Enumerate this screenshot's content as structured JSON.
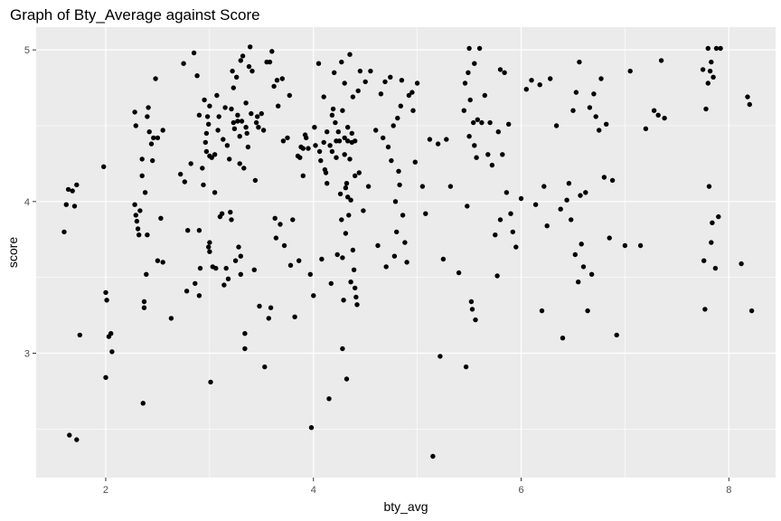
{
  "chart_data": {
    "type": "scatter",
    "title": "Graph of Bty_Average against Score",
    "xlabel": "bty_avg",
    "ylabel": "score",
    "xlim": [
      1.33,
      8.45
    ],
    "ylim": [
      2.18,
      5.15
    ],
    "x_ticks": [
      2,
      4,
      6,
      8
    ],
    "x_tick_labels": [
      "2",
      "4",
      "6",
      "8"
    ],
    "y_ticks": [
      3,
      4,
      5
    ],
    "y_tick_labels": [
      "3",
      "4",
      "5"
    ],
    "grid": true,
    "colors": {
      "panel": "#ebebeb",
      "grid_major": "#ffffff",
      "point": "#000000",
      "tick": "#333333"
    },
    "points": [
      [
        1.6,
        3.8
      ],
      [
        1.62,
        3.98
      ],
      [
        1.64,
        4.08
      ],
      [
        1.68,
        4.07
      ],
      [
        1.7,
        3.97
      ],
      [
        1.72,
        4.11
      ],
      [
        1.65,
        2.46
      ],
      [
        1.72,
        2.43
      ],
      [
        1.75,
        3.12
      ],
      [
        1.98,
        4.23
      ],
      [
        2.0,
        2.84
      ],
      [
        2.0,
        3.4
      ],
      [
        2.01,
        3.35
      ],
      [
        2.03,
        3.11
      ],
      [
        2.05,
        3.13
      ],
      [
        2.06,
        3.01
      ],
      [
        2.28,
        4.59
      ],
      [
        2.29,
        4.5
      ],
      [
        2.28,
        3.98
      ],
      [
        2.29,
        3.91
      ],
      [
        2.3,
        3.87
      ],
      [
        2.31,
        3.82
      ],
      [
        2.32,
        3.78
      ],
      [
        2.33,
        3.94
      ],
      [
        2.35,
        4.28
      ],
      [
        2.35,
        4.17
      ],
      [
        2.37,
        3.34
      ],
      [
        2.37,
        3.3
      ],
      [
        2.36,
        2.67
      ],
      [
        2.38,
        4.06
      ],
      [
        2.39,
        3.52
      ],
      [
        2.4,
        3.78
      ],
      [
        2.4,
        4.56
      ],
      [
        2.41,
        4.62
      ],
      [
        2.42,
        4.46
      ],
      [
        2.44,
        4.38
      ],
      [
        2.45,
        4.27
      ],
      [
        2.46,
        4.42
      ],
      [
        2.48,
        4.81
      ],
      [
        2.5,
        4.42
      ],
      [
        2.5,
        3.61
      ],
      [
        2.53,
        3.89
      ],
      [
        2.55,
        3.6
      ],
      [
        2.55,
        4.47
      ],
      [
        2.63,
        3.23
      ],
      [
        2.72,
        4.18
      ],
      [
        2.75,
        4.91
      ],
      [
        2.76,
        4.13
      ],
      [
        2.78,
        3.41
      ],
      [
        2.79,
        3.81
      ],
      [
        2.82,
        4.25
      ],
      [
        2.85,
        4.98
      ],
      [
        2.86,
        3.46
      ],
      [
        2.88,
        4.83
      ],
      [
        2.9,
        4.57
      ],
      [
        2.9,
        3.38
      ],
      [
        2.9,
        3.81
      ],
      [
        2.91,
        3.56
      ],
      [
        2.93,
        4.22
      ],
      [
        2.94,
        4.11
      ],
      [
        2.95,
        4.67
      ],
      [
        2.96,
        4.39
      ],
      [
        2.97,
        4.33
      ],
      [
        2.97,
        4.45
      ],
      [
        2.98,
        4.56
      ],
      [
        2.99,
        3.7
      ],
      [
        3.0,
        3.73
      ],
      [
        3.0,
        3.67
      ],
      [
        3.0,
        4.3
      ],
      [
        3.0,
        4.63
      ],
      [
        3.01,
        2.81
      ],
      [
        3.02,
        4.29
      ],
      [
        3.03,
        3.57
      ],
      [
        3.05,
        4.06
      ],
      [
        3.06,
        3.56
      ],
      [
        3.07,
        4.7
      ],
      [
        3.08,
        4.47
      ],
      [
        3.09,
        4.56
      ],
      [
        3.1,
        3.9
      ],
      [
        3.12,
        3.92
      ],
      [
        3.14,
        3.45
      ],
      [
        3.15,
        4.62
      ],
      [
        3.16,
        3.56
      ],
      [
        3.17,
        4.37
      ],
      [
        3.18,
        3.49
      ],
      [
        3.19,
        4.28
      ],
      [
        3.2,
        3.93
      ],
      [
        3.21,
        3.88
      ],
      [
        3.22,
        4.86
      ],
      [
        3.23,
        4.75
      ],
      [
        3.23,
        4.52
      ],
      [
        3.24,
        4.48
      ],
      [
        3.25,
        3.61
      ],
      [
        3.26,
        4.82
      ],
      [
        3.27,
        4.57
      ],
      [
        3.28,
        3.7
      ],
      [
        3.29,
        4.25
      ],
      [
        3.3,
        3.64
      ],
      [
        3.3,
        4.93
      ],
      [
        3.3,
        3.52
      ],
      [
        3.31,
        4.53
      ],
      [
        3.32,
        4.96
      ],
      [
        3.33,
        4.22
      ],
      [
        3.34,
        3.13
      ],
      [
        3.34,
        3.03
      ],
      [
        3.35,
        4.65
      ],
      [
        3.35,
        4.49
      ],
      [
        3.36,
        4.45
      ],
      [
        3.37,
        4.36
      ],
      [
        3.38,
        4.89
      ],
      [
        3.39,
        5.02
      ],
      [
        3.4,
        4.58
      ],
      [
        3.41,
        4.86
      ],
      [
        3.43,
        3.55
      ],
      [
        3.44,
        4.14
      ],
      [
        3.45,
        4.52
      ],
      [
        3.46,
        4.56
      ],
      [
        3.47,
        4.49
      ],
      [
        3.48,
        3.31
      ],
      [
        3.5,
        4.58
      ],
      [
        3.52,
        4.47
      ],
      [
        3.53,
        2.91
      ],
      [
        3.55,
        4.92
      ],
      [
        3.57,
        3.23
      ],
      [
        3.58,
        4.92
      ],
      [
        3.59,
        3.3
      ],
      [
        3.6,
        4.99
      ],
      [
        3.62,
        4.76
      ],
      [
        3.63,
        3.89
      ],
      [
        3.64,
        3.76
      ],
      [
        3.65,
        4.8
      ],
      [
        3.66,
        4.63
      ],
      [
        3.68,
        3.85
      ],
      [
        3.7,
        4.81
      ],
      [
        3.71,
        4.4
      ],
      [
        3.72,
        3.71
      ],
      [
        3.75,
        4.42
      ],
      [
        3.77,
        4.7
      ],
      [
        3.78,
        3.58
      ],
      [
        3.8,
        3.88
      ],
      [
        3.82,
        3.24
      ],
      [
        3.85,
        4.3
      ],
      [
        3.86,
        3.61
      ],
      [
        3.87,
        4.29
      ],
      [
        3.88,
        4.36
      ],
      [
        3.9,
        4.35
      ],
      [
        3.9,
        4.17
      ],
      [
        3.92,
        4.44
      ],
      [
        3.93,
        4.42
      ],
      [
        3.95,
        4.35
      ],
      [
        3.97,
        3.52
      ],
      [
        3.98,
        2.51
      ],
      [
        4.0,
        3.38
      ],
      [
        4.01,
        4.49
      ],
      [
        4.02,
        4.37
      ],
      [
        4.05,
        4.91
      ],
      [
        4.06,
        4.33
      ],
      [
        4.07,
        4.27
      ],
      [
        4.08,
        3.62
      ],
      [
        4.1,
        4.69
      ],
      [
        4.11,
        4.21
      ],
      [
        4.12,
        4.19
      ],
      [
        4.13,
        4.46
      ],
      [
        4.13,
        4.12
      ],
      [
        4.15,
        2.7
      ],
      [
        4.16,
        4.37
      ],
      [
        4.17,
        3.46
      ],
      [
        4.18,
        4.57
      ],
      [
        4.19,
        4.61
      ],
      [
        4.2,
        4.85
      ],
      [
        4.21,
        4.52
      ],
      [
        4.22,
        4.4
      ],
      [
        4.23,
        3.65
      ],
      [
        4.24,
        4.46
      ],
      [
        4.25,
        4.4
      ],
      [
        4.26,
        4.05
      ],
      [
        4.27,
        3.88
      ],
      [
        4.27,
        4.92
      ],
      [
        4.28,
        4.6
      ],
      [
        4.28,
        3.03
      ],
      [
        4.29,
        3.35
      ],
      [
        4.3,
        4.78
      ],
      [
        4.3,
        4.42
      ],
      [
        4.3,
        4.31
      ],
      [
        4.31,
        3.79
      ],
      [
        4.32,
        2.83
      ],
      [
        4.32,
        4.12
      ],
      [
        4.33,
        4.03
      ],
      [
        4.33,
        4.49
      ],
      [
        4.34,
        3.91
      ],
      [
        4.35,
        4.97
      ],
      [
        4.35,
        4.28
      ],
      [
        4.36,
        4.01
      ],
      [
        4.36,
        3.47
      ],
      [
        4.37,
        4.45
      ],
      [
        4.38,
        4.69
      ],
      [
        4.38,
        3.68
      ],
      [
        4.39,
        3.55
      ],
      [
        4.4,
        3.43
      ],
      [
        4.4,
        4.4
      ],
      [
        4.41,
        3.37
      ],
      [
        4.42,
        3.32
      ],
      [
        4.43,
        4.73
      ],
      [
        4.44,
        4.19
      ],
      [
        4.45,
        4.86
      ],
      [
        4.48,
        3.94
      ],
      [
        4.5,
        4.79
      ],
      [
        4.53,
        4.1
      ],
      [
        4.55,
        4.86
      ],
      [
        4.6,
        4.47
      ],
      [
        4.62,
        3.71
      ],
      [
        4.65,
        4.71
      ],
      [
        4.67,
        4.42
      ],
      [
        4.69,
        4.79
      ],
      [
        4.7,
        3.57
      ],
      [
        4.72,
        4.36
      ],
      [
        4.74,
        4.82
      ],
      [
        4.75,
        4.27
      ],
      [
        4.77,
        4.5
      ],
      [
        4.78,
        3.64
      ],
      [
        4.79,
        4.0
      ],
      [
        4.8,
        3.8
      ],
      [
        4.81,
        4.55
      ],
      [
        4.82,
        4.2
      ],
      [
        4.83,
        4.11
      ],
      [
        4.84,
        4.63
      ],
      [
        4.85,
        4.8
      ],
      [
        4.86,
        3.91
      ],
      [
        4.88,
        3.73
      ],
      [
        4.9,
        3.6
      ],
      [
        4.92,
        4.7
      ],
      [
        4.95,
        4.72
      ],
      [
        4.96,
        4.6
      ],
      [
        4.98,
        4.26
      ],
      [
        5.0,
        4.78
      ],
      [
        5.05,
        4.1
      ],
      [
        5.08,
        3.92
      ],
      [
        5.12,
        4.41
      ],
      [
        5.15,
        2.32
      ],
      [
        5.2,
        4.38
      ],
      [
        5.22,
        2.98
      ],
      [
        5.25,
        3.62
      ],
      [
        5.28,
        4.41
      ],
      [
        5.32,
        4.1
      ],
      [
        5.4,
        3.53
      ],
      [
        5.45,
        4.6
      ],
      [
        5.46,
        4.78
      ],
      [
        5.47,
        2.91
      ],
      [
        5.48,
        3.97
      ],
      [
        5.49,
        4.85
      ],
      [
        5.5,
        5.01
      ],
      [
        5.5,
        4.43
      ],
      [
        5.51,
        4.67
      ],
      [
        5.52,
        3.34
      ],
      [
        5.53,
        3.29
      ],
      [
        5.54,
        4.52
      ],
      [
        5.55,
        4.91
      ],
      [
        5.55,
        4.37
      ],
      [
        5.56,
        3.22
      ],
      [
        5.57,
        4.29
      ],
      [
        5.58,
        4.54
      ],
      [
        5.6,
        5.01
      ],
      [
        5.62,
        4.52
      ],
      [
        5.65,
        4.7
      ],
      [
        5.68,
        4.31
      ],
      [
        5.7,
        4.52
      ],
      [
        5.72,
        4.24
      ],
      [
        5.75,
        3.78
      ],
      [
        5.77,
        3.51
      ],
      [
        5.78,
        4.46
      ],
      [
        5.8,
        4.87
      ],
      [
        5.8,
        3.88
      ],
      [
        5.82,
        4.31
      ],
      [
        5.84,
        4.85
      ],
      [
        5.86,
        4.06
      ],
      [
        5.88,
        4.51
      ],
      [
        5.9,
        3.92
      ],
      [
        5.92,
        3.8
      ],
      [
        5.95,
        3.7
      ],
      [
        6.0,
        4.02
      ],
      [
        6.05,
        4.74
      ],
      [
        6.1,
        4.8
      ],
      [
        6.14,
        3.98
      ],
      [
        6.18,
        4.77
      ],
      [
        6.2,
        3.28
      ],
      [
        6.22,
        4.1
      ],
      [
        6.25,
        3.84
      ],
      [
        6.28,
        4.81
      ],
      [
        6.34,
        4.5
      ],
      [
        6.38,
        3.95
      ],
      [
        6.4,
        3.1
      ],
      [
        6.44,
        4.01
      ],
      [
        6.46,
        4.12
      ],
      [
        6.48,
        3.88
      ],
      [
        6.5,
        4.6
      ],
      [
        6.52,
        3.65
      ],
      [
        6.53,
        4.72
      ],
      [
        6.55,
        3.47
      ],
      [
        6.56,
        4.92
      ],
      [
        6.57,
        4.04
      ],
      [
        6.58,
        3.72
      ],
      [
        6.6,
        3.57
      ],
      [
        6.62,
        4.06
      ],
      [
        6.64,
        3.28
      ],
      [
        6.66,
        4.62
      ],
      [
        6.68,
        3.52
      ],
      [
        6.7,
        4.71
      ],
      [
        6.72,
        4.56
      ],
      [
        6.75,
        4.47
      ],
      [
        6.77,
        4.81
      ],
      [
        6.8,
        4.16
      ],
      [
        6.82,
        4.51
      ],
      [
        6.85,
        3.76
      ],
      [
        6.88,
        4.14
      ],
      [
        6.92,
        3.12
      ],
      [
        7.0,
        3.71
      ],
      [
        7.05,
        4.86
      ],
      [
        7.15,
        3.71
      ],
      [
        7.2,
        4.48
      ],
      [
        7.28,
        4.6
      ],
      [
        7.32,
        4.57
      ],
      [
        7.35,
        4.93
      ],
      [
        7.38,
        4.55
      ],
      [
        7.75,
        4.87
      ],
      [
        7.76,
        3.61
      ],
      [
        7.77,
        3.29
      ],
      [
        7.78,
        4.61
      ],
      [
        7.8,
        5.01
      ],
      [
        7.8,
        4.78
      ],
      [
        7.81,
        4.1
      ],
      [
        7.82,
        4.86
      ],
      [
        7.83,
        4.92
      ],
      [
        7.83,
        3.73
      ],
      [
        7.84,
        3.86
      ],
      [
        7.85,
        4.82
      ],
      [
        7.87,
        3.56
      ],
      [
        7.88,
        5.01
      ],
      [
        7.9,
        3.9
      ],
      [
        7.92,
        5.01
      ],
      [
        8.12,
        3.59
      ],
      [
        8.18,
        4.69
      ],
      [
        8.2,
        4.64
      ],
      [
        8.22,
        3.28
      ],
      [
        4.33,
        4.4
      ],
      [
        4.37,
        4.39
      ],
      [
        4.22,
        4.29
      ],
      [
        4.28,
        3.63
      ],
      [
        4.4,
        4.17
      ],
      [
        4.31,
        4.09
      ],
      [
        3.29,
        4.43
      ],
      [
        3.13,
        4.41
      ],
      [
        3.21,
        4.61
      ],
      [
        3.27,
        4.53
      ],
      [
        2.99,
        4.51
      ],
      [
        3.05,
        4.31
      ],
      [
        4.1,
        4.39
      ],
      [
        4.18,
        4.33
      ]
    ]
  }
}
